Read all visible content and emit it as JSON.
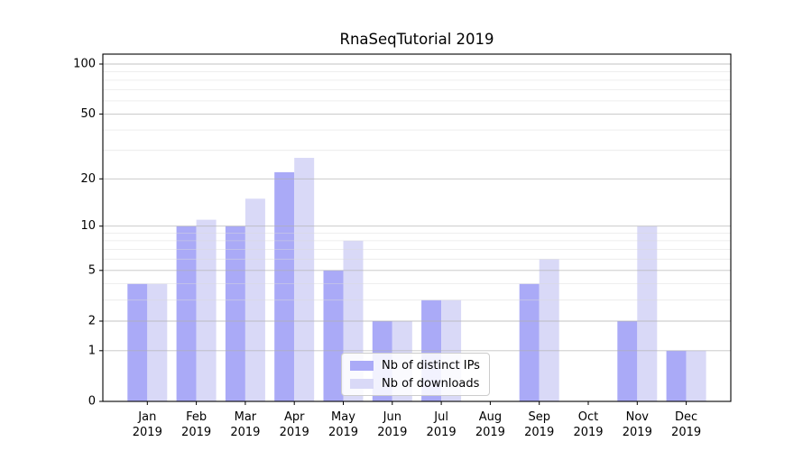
{
  "chart_data": {
    "type": "bar",
    "title": "RnaSeqTutorial 2019",
    "categories": [
      "Jan 2019",
      "Feb 2019",
      "Mar 2019",
      "Apr 2019",
      "May 2019",
      "Jun 2019",
      "Jul 2019",
      "Aug 2019",
      "Sep 2019",
      "Oct 2019",
      "Nov 2019",
      "Dec 2019"
    ],
    "series": [
      {
        "name": "Nb of distinct IPs",
        "color": "#aaaaf7",
        "values": [
          4,
          10,
          10,
          22,
          5,
          2,
          3,
          0,
          4,
          0,
          2,
          1
        ]
      },
      {
        "name": "Nb of downloads",
        "color": "#d9d9f7",
        "values": [
          4,
          11,
          15,
          27,
          8,
          2,
          3,
          0,
          6,
          0,
          10,
          1
        ]
      }
    ],
    "xlabel": "",
    "ylabel": "",
    "yscale": "log1p",
    "ylim": [
      0,
      114.7
    ],
    "y_major_ticks": [
      0,
      1,
      2,
      5,
      10,
      20,
      50,
      100
    ],
    "y_minor_ticks": [
      3,
      4,
      6,
      7,
      8,
      9,
      30,
      40,
      60,
      70,
      80,
      90
    ],
    "grid": "both",
    "legend_position": "lower center"
  },
  "colors": {
    "major_grid": "#b0b0b0",
    "minor_grid": "#dadada",
    "spine": "#000000",
    "tick_text": "#000000"
  }
}
